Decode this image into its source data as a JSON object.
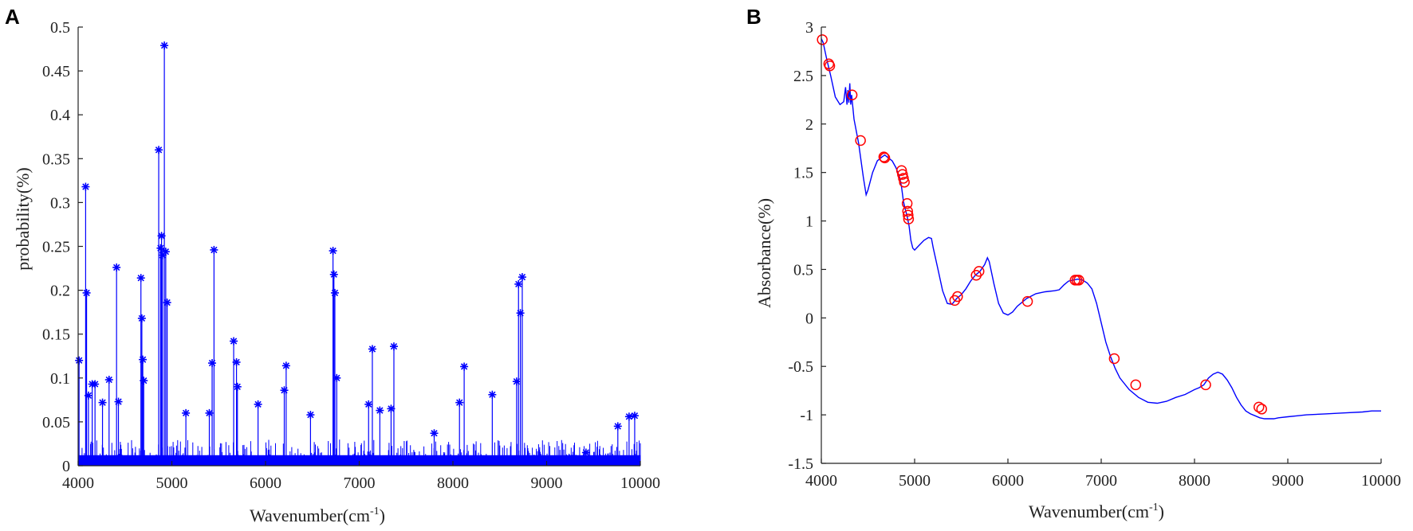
{
  "figure": {
    "panels": [
      "A",
      "B"
    ]
  },
  "chart_data": [
    {
      "panel": "A",
      "type": "line",
      "marker": "asterisk",
      "color": "#0000ff",
      "xlabel": "Wavenumber(cm",
      "xlabel_sup": "-1",
      "xlabel_close": ")",
      "ylabel": "probability(%)",
      "xlim": [
        4000,
        10000
      ],
      "ylim": [
        0,
        0.5
      ],
      "xticks": [
        4000,
        5000,
        6000,
        7000,
        8000,
        9000,
        10000
      ],
      "yticks": [
        0,
        0.05,
        0.1,
        0.15,
        0.2,
        0.25,
        0.3,
        0.35,
        0.4,
        0.45,
        0.5
      ],
      "ytick_labels": [
        "0",
        "0.05",
        "0.1",
        "0.15",
        "0.2",
        "0.25",
        "0.3",
        "0.35",
        "0.4",
        "0.45",
        "0.5"
      ],
      "peaks": [
        {
          "x": 4010,
          "y": 0.12
        },
        {
          "x": 4080,
          "y": 0.318
        },
        {
          "x": 4090,
          "y": 0.197
        },
        {
          "x": 4110,
          "y": 0.08
        },
        {
          "x": 4150,
          "y": 0.093
        },
        {
          "x": 4180,
          "y": 0.093
        },
        {
          "x": 4260,
          "y": 0.072
        },
        {
          "x": 4330,
          "y": 0.098
        },
        {
          "x": 4410,
          "y": 0.226
        },
        {
          "x": 4430,
          "y": 0.073
        },
        {
          "x": 4670,
          "y": 0.214
        },
        {
          "x": 4680,
          "y": 0.168
        },
        {
          "x": 4690,
          "y": 0.121
        },
        {
          "x": 4700,
          "y": 0.097
        },
        {
          "x": 4860,
          "y": 0.36
        },
        {
          "x": 4880,
          "y": 0.248
        },
        {
          "x": 4890,
          "y": 0.262
        },
        {
          "x": 4900,
          "y": 0.24
        },
        {
          "x": 4920,
          "y": 0.479
        },
        {
          "x": 4935,
          "y": 0.244
        },
        {
          "x": 4950,
          "y": 0.186
        },
        {
          "x": 5150,
          "y": 0.06
        },
        {
          "x": 5400,
          "y": 0.06
        },
        {
          "x": 5430,
          "y": 0.117
        },
        {
          "x": 5450,
          "y": 0.246
        },
        {
          "x": 5660,
          "y": 0.142
        },
        {
          "x": 5690,
          "y": 0.118
        },
        {
          "x": 5700,
          "y": 0.09
        },
        {
          "x": 5920,
          "y": 0.07
        },
        {
          "x": 6200,
          "y": 0.086
        },
        {
          "x": 6220,
          "y": 0.114
        },
        {
          "x": 6480,
          "y": 0.058
        },
        {
          "x": 6720,
          "y": 0.245
        },
        {
          "x": 6730,
          "y": 0.218
        },
        {
          "x": 6740,
          "y": 0.197
        },
        {
          "x": 6760,
          "y": 0.1
        },
        {
          "x": 7100,
          "y": 0.07
        },
        {
          "x": 7140,
          "y": 0.133
        },
        {
          "x": 7220,
          "y": 0.063
        },
        {
          "x": 7340,
          "y": 0.065
        },
        {
          "x": 7370,
          "y": 0.136
        },
        {
          "x": 7800,
          "y": 0.037
        },
        {
          "x": 8070,
          "y": 0.072
        },
        {
          "x": 8120,
          "y": 0.113
        },
        {
          "x": 8420,
          "y": 0.081
        },
        {
          "x": 8680,
          "y": 0.096
        },
        {
          "x": 8700,
          "y": 0.207
        },
        {
          "x": 8720,
          "y": 0.174
        },
        {
          "x": 8740,
          "y": 0.215
        },
        {
          "x": 9420,
          "y": 0.015
        },
        {
          "x": 9760,
          "y": 0.045
        },
        {
          "x": 9880,
          "y": 0.056
        },
        {
          "x": 9940,
          "y": 0.057
        }
      ]
    },
    {
      "panel": "B",
      "type": "line",
      "color": "#0000ff",
      "marker_color": "#ff0000",
      "xlabel": "Wavenumber(cm",
      "xlabel_sup": "-1",
      "xlabel_close": ")",
      "ylabel": "Absorbance(%)",
      "xlim": [
        4000,
        10000
      ],
      "ylim": [
        -1.5,
        3
      ],
      "xticks": [
        4000,
        5000,
        6000,
        7000,
        8000,
        9000,
        10000
      ],
      "yticks": [
        -1.5,
        -1,
        -0.5,
        0,
        0.5,
        1,
        1.5,
        2,
        2.5,
        3
      ],
      "ytick_labels": [
        "-1.5",
        "-1",
        "-0.5",
        "0",
        "0.5",
        "1",
        "1.5",
        "2",
        "2.5",
        "3"
      ],
      "x": [
        4000,
        4020,
        4060,
        4100,
        4150,
        4200,
        4240,
        4260,
        4275,
        4285,
        4295,
        4305,
        4315,
        4325,
        4350,
        4400,
        4450,
        4480,
        4500,
        4550,
        4600,
        4650,
        4680,
        4720,
        4760,
        4800,
        4840,
        4860,
        4880,
        4900,
        4920,
        4940,
        4960,
        4980,
        5000,
        5050,
        5100,
        5150,
        5180,
        5200,
        5250,
        5300,
        5350,
        5400,
        5450,
        5500,
        5550,
        5600,
        5650,
        5700,
        5750,
        5780,
        5800,
        5850,
        5900,
        5950,
        6000,
        6050,
        6100,
        6200,
        6300,
        6400,
        6500,
        6550,
        6600,
        6650,
        6700,
        6750,
        6800,
        6850,
        6900,
        6950,
        7000,
        7050,
        7100,
        7150,
        7200,
        7300,
        7400,
        7500,
        7600,
        7700,
        7800,
        7900,
        8000,
        8050,
        8100,
        8150,
        8200,
        8250,
        8300,
        8350,
        8400,
        8450,
        8500,
        8550,
        8600,
        8650,
        8700,
        8750,
        8800,
        8850,
        8900,
        9000,
        9100,
        9200,
        9400,
        9600,
        9800,
        9900,
        10000
      ],
      "y": [
        2.88,
        2.84,
        2.66,
        2.5,
        2.28,
        2.2,
        2.23,
        2.38,
        2.2,
        2.35,
        2.22,
        2.42,
        2.2,
        2.3,
        2.05,
        1.8,
        1.45,
        1.27,
        1.32,
        1.5,
        1.62,
        1.66,
        1.68,
        1.65,
        1.62,
        1.55,
        1.45,
        1.35,
        1.2,
        1.12,
        1.05,
        0.95,
        0.8,
        0.72,
        0.7,
        0.75,
        0.8,
        0.83,
        0.82,
        0.72,
        0.5,
        0.28,
        0.15,
        0.14,
        0.2,
        0.24,
        0.3,
        0.38,
        0.44,
        0.48,
        0.55,
        0.62,
        0.58,
        0.35,
        0.15,
        0.05,
        0.03,
        0.06,
        0.12,
        0.2,
        0.25,
        0.27,
        0.28,
        0.29,
        0.34,
        0.38,
        0.39,
        0.4,
        0.39,
        0.36,
        0.3,
        0.15,
        -0.05,
        -0.25,
        -0.4,
        -0.52,
        -0.62,
        -0.74,
        -0.82,
        -0.87,
        -0.88,
        -0.86,
        -0.82,
        -0.79,
        -0.74,
        -0.72,
        -0.69,
        -0.62,
        -0.58,
        -0.56,
        -0.58,
        -0.64,
        -0.72,
        -0.82,
        -0.9,
        -0.96,
        -0.99,
        -1.01,
        -1.03,
        -1.04,
        -1.04,
        -1.04,
        -1.03,
        -1.02,
        -1.01,
        -1.0,
        -0.99,
        -0.98,
        -0.97,
        -0.96,
        -0.96
      ],
      "markers": [
        {
          "x": 4010,
          "y": 2.87
        },
        {
          "x": 4080,
          "y": 2.62
        },
        {
          "x": 4090,
          "y": 2.6
        },
        {
          "x": 4330,
          "y": 2.3
        },
        {
          "x": 4420,
          "y": 1.83
        },
        {
          "x": 4670,
          "y": 1.66
        },
        {
          "x": 4680,
          "y": 1.65
        },
        {
          "x": 4860,
          "y": 1.52
        },
        {
          "x": 4870,
          "y": 1.48
        },
        {
          "x": 4880,
          "y": 1.44
        },
        {
          "x": 4890,
          "y": 1.4
        },
        {
          "x": 4920,
          "y": 1.18
        },
        {
          "x": 4925,
          "y": 1.1
        },
        {
          "x": 4930,
          "y": 1.06
        },
        {
          "x": 4935,
          "y": 1.02
        },
        {
          "x": 5430,
          "y": 0.18
        },
        {
          "x": 5460,
          "y": 0.22
        },
        {
          "x": 5660,
          "y": 0.44
        },
        {
          "x": 5690,
          "y": 0.48
        },
        {
          "x": 6210,
          "y": 0.17
        },
        {
          "x": 6720,
          "y": 0.39
        },
        {
          "x": 6740,
          "y": 0.39
        },
        {
          "x": 6760,
          "y": 0.39
        },
        {
          "x": 7140,
          "y": -0.42
        },
        {
          "x": 7370,
          "y": -0.69
        },
        {
          "x": 8120,
          "y": -0.69
        },
        {
          "x": 8690,
          "y": -0.92
        },
        {
          "x": 8720,
          "y": -0.94
        }
      ]
    }
  ]
}
